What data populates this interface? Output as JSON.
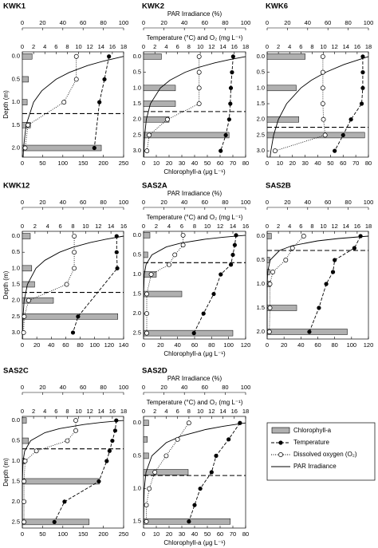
{
  "chart_data": [
    {
      "type": "profile",
      "title": "KWK1",
      "ylabel": "Depth (m)",
      "ylim": [
        -0.1,
        2.2
      ],
      "yticks": [
        {
          "value": 0,
          "label": "0.0"
        },
        0.5,
        {
          "value": 1,
          "label": "1.0"
        },
        1.5,
        {
          "value": 2,
          "label": "2.0"
        }
      ],
      "chl_xlim": [
        0,
        250
      ],
      "chl_xticks": [
        0,
        50,
        100,
        150,
        200,
        250
      ],
      "temp_xlim": [
        0,
        18
      ],
      "temp_xticks": [
        0,
        2,
        4,
        6,
        8,
        10,
        12,
        14,
        16,
        18
      ],
      "par_xlim": [
        0,
        100
      ],
      "par_xticks": [
        0,
        20,
        40,
        60,
        80,
        100
      ],
      "mixing_depth": 1.25,
      "chlorophyll": {
        "depth": [
          0,
          0.5,
          1,
          1.5,
          2
        ],
        "values": [
          24,
          15,
          12,
          20,
          195
        ]
      },
      "temperature": {
        "depth": [
          0,
          0.5,
          1,
          2
        ],
        "values": [
          15.4,
          14.6,
          13.7,
          12.8
        ]
      },
      "oxygen": {
        "depth": [
          0,
          0.5,
          1,
          1.5,
          2
        ],
        "values": [
          9.6,
          9.6,
          7.4,
          1,
          0.5
        ]
      },
      "par": {
        "depth": [
          0,
          0.1,
          0.2,
          0.35,
          0.5,
          0.75,
          1,
          1.5,
          2,
          2.2
        ],
        "values": [
          100,
          80.3,
          64.4,
          46.3,
          33.3,
          19.2,
          11.1,
          3.7,
          1.2,
          0.8
        ]
      }
    },
    {
      "type": "profile",
      "title": "KWK2",
      "par_label": "PAR Irradiance (%)",
      "temp_label": "Temperature (°C) and O₂ (mg L⁻¹)",
      "xlabel": "Chlorophyll-a (μg L⁻¹)",
      "ylim": [
        -0.15,
        3.2
      ],
      "yticks": [
        {
          "value": 0,
          "label": "0.0"
        },
        0.5,
        {
          "value": 1,
          "label": "1.0"
        },
        1.5,
        {
          "value": 2,
          "label": "2.0"
        },
        2.5,
        {
          "value": 3,
          "label": "3.0"
        }
      ],
      "chl_xlim": [
        0,
        80
      ],
      "chl_xticks": [
        0,
        10,
        20,
        30,
        40,
        50,
        60,
        70,
        80
      ],
      "temp_xlim": [
        0,
        18
      ],
      "temp_xticks": [
        0,
        2,
        4,
        6,
        8,
        10,
        12,
        14,
        16,
        18
      ],
      "par_xlim": [
        0,
        100
      ],
      "par_xticks": [
        0,
        20,
        40,
        60,
        80,
        100
      ],
      "mixing_depth": 1.75,
      "chlorophyll": {
        "depth": [
          0,
          1,
          1.5,
          2,
          2.5
        ],
        "values": [
          14,
          25,
          25,
          20,
          67
        ]
      },
      "temperature": {
        "depth": [
          0,
          0.5,
          1,
          1.5,
          2,
          2.5,
          3
        ],
        "values": [
          15.8,
          15.6,
          15.4,
          15.3,
          15.1,
          14.5,
          13.6
        ]
      },
      "oxygen": {
        "depth": [
          0,
          0.5,
          1,
          1.5,
          2,
          2.5,
          3
        ],
        "values": [
          9.8,
          9.8,
          9.8,
          9.8,
          4.2,
          1,
          0.6
        ]
      },
      "par": {
        "depth": [
          0,
          0.1,
          0.2,
          0.35,
          0.5,
          0.75,
          1,
          1.5,
          2,
          2.5,
          3,
          3.2
        ],
        "values": [
          100,
          83.5,
          69.8,
          53.3,
          40.7,
          25.9,
          16.5,
          6.7,
          2.7,
          1.1,
          0.5,
          0.3
        ]
      }
    },
    {
      "type": "profile",
      "title": "KWK6",
      "ylim": [
        -0.15,
        3.2
      ],
      "yticks": [
        {
          "value": 0,
          "label": "0.0"
        },
        0.5,
        {
          "value": 1,
          "label": "1.0"
        },
        1.5,
        {
          "value": 2,
          "label": "2.0"
        },
        2.5,
        {
          "value": 3,
          "label": "3.0"
        }
      ],
      "chl_xlim": [
        0,
        80
      ],
      "chl_xticks": [
        0,
        10,
        20,
        30,
        40,
        50,
        60,
        70,
        80
      ],
      "temp_xlim": [
        0,
        18
      ],
      "temp_xticks": [
        0,
        2,
        4,
        6,
        8,
        10,
        12,
        14,
        16,
        18
      ],
      "par_xlim": [
        0,
        100
      ],
      "par_xticks": [
        0,
        20,
        40,
        60,
        80,
        100
      ],
      "mixing_depth": 2.25,
      "chlorophyll": {
        "depth": [
          0,
          1,
          2,
          2.5
        ],
        "values": [
          30,
          23,
          25,
          77
        ]
      },
      "temperature": {
        "depth": [
          0,
          0.5,
          1,
          1.5,
          2,
          2.5,
          3
        ],
        "values": [
          17,
          17,
          17,
          16.8,
          14.9,
          13.5,
          12
        ]
      },
      "oxygen": {
        "depth": [
          0,
          0.5,
          1,
          1.5,
          2,
          2.5,
          3
        ],
        "values": [
          9.9,
          9.9,
          9.9,
          9.9,
          10,
          10.3,
          1.4
        ]
      },
      "par": {
        "depth": [
          0,
          0.25,
          0.5,
          0.75,
          1,
          1.5,
          2,
          2.5,
          3,
          3.2
        ],
        "values": [
          100,
          76,
          57.7,
          43.8,
          33.3,
          19.2,
          11.1,
          6.4,
          3.7,
          2.9
        ]
      }
    },
    {
      "type": "profile",
      "title": "KWK12",
      "ylabel": "Depth (m)",
      "ylim": [
        -0.15,
        3.2
      ],
      "yticks": [
        {
          "value": 0,
          "label": "0.0"
        },
        0.5,
        {
          "value": 1,
          "label": "1.0"
        },
        1.5,
        {
          "value": 2,
          "label": "2.0"
        },
        2.5,
        {
          "value": 3,
          "label": "3.0"
        }
      ],
      "chl_xlim": [
        0,
        140
      ],
      "chl_xticks": [
        0,
        20,
        40,
        60,
        80,
        100,
        120,
        140
      ],
      "temp_xlim": [
        0,
        16
      ],
      "temp_xticks": [
        0,
        2,
        4,
        6,
        8,
        10,
        12,
        14,
        16
      ],
      "par_xlim": [
        0,
        100
      ],
      "par_xticks": [
        0,
        20,
        40,
        60,
        80,
        100
      ],
      "mixing_depth": 1.75,
      "chlorophyll": {
        "depth": [
          0,
          1,
          1.5,
          2,
          2.5
        ],
        "values": [
          11,
          13,
          17,
          43,
          132
        ]
      },
      "temperature": {
        "depth": [
          0,
          0.5,
          1,
          2.5,
          3
        ],
        "values": [
          14.9,
          14.9,
          15,
          8.8,
          8
        ]
      },
      "oxygen": {
        "depth": [
          0,
          0.5,
          1,
          1.5,
          2,
          2.5,
          3
        ],
        "values": [
          8.2,
          8.2,
          8.2,
          7,
          1,
          0.3,
          0.2
        ]
      },
      "par": {
        "depth": [
          0,
          0.1,
          0.2,
          0.35,
          0.5,
          0.75,
          1,
          1.5,
          2,
          2.5,
          3,
          3.2
        ],
        "values": [
          100,
          81.9,
          67,
          49.7,
          36.8,
          22.3,
          13.5,
          5,
          1.8,
          0.7,
          0.2,
          0.2
        ]
      }
    },
    {
      "type": "profile",
      "title": "SAS2A",
      "par_label": "PAR Irradiance (%)",
      "temp_label": "Temperature (°C) and O₂ (mg L⁻¹)",
      "xlabel": "Chlorophyll-a (μg L⁻¹)",
      "ylim": [
        -0.1,
        2.65
      ],
      "yticks": [
        {
          "value": 0,
          "label": "0.0"
        },
        0.5,
        {
          "value": 1,
          "label": "1.0"
        },
        1.5,
        {
          "value": 2,
          "label": "2.0"
        },
        2.5
      ],
      "chl_xlim": [
        0,
        120
      ],
      "chl_xticks": [
        0,
        20,
        40,
        60,
        80,
        100,
        120
      ],
      "temp_xlim": [
        0,
        16
      ],
      "temp_xticks": [
        0,
        2,
        4,
        6,
        8,
        10,
        12,
        14,
        16
      ],
      "par_xlim": [
        0,
        100
      ],
      "par_xticks": [
        0,
        20,
        40,
        60,
        80,
        100
      ],
      "mixing_depth": 0.7,
      "chlorophyll": {
        "depth": [
          0,
          0.5,
          1,
          1.5,
          2.5
        ],
        "values": [
          7.5,
          5,
          15,
          45,
          105
        ]
      },
      "temperature": {
        "depth": [
          0,
          0.25,
          0.5,
          0.75,
          1,
          1.5,
          2,
          2.5
        ],
        "values": [
          14.5,
          14.3,
          14,
          13.7,
          12.1,
          11,
          9.4,
          7.9
        ]
      },
      "oxygen": {
        "depth": [
          0,
          0.25,
          0.5,
          0.75,
          1,
          1.5,
          2,
          2.5
        ],
        "values": [
          6.2,
          6.2,
          4.9,
          4,
          1.2,
          0.5,
          0.5,
          0.5
        ]
      },
      "par": {
        "depth": [
          0,
          0.05,
          0.1,
          0.2,
          0.3,
          0.5,
          0.75,
          1,
          1.5,
          2,
          2.6
        ],
        "values": [
          100,
          77.9,
          60.7,
          36.8,
          22.3,
          8.2,
          2.4,
          0.7,
          0.1,
          0,
          0
        ]
      }
    },
    {
      "type": "profile",
      "title": "SAS2B",
      "ylim": [
        -0.1,
        2.15
      ],
      "yticks": [
        {
          "value": 0,
          "label": "0.0"
        },
        0.5,
        {
          "value": 1,
          "label": "1.0"
        },
        1.5,
        {
          "value": 2,
          "label": "2.0"
        }
      ],
      "chl_xlim": [
        0,
        120
      ],
      "chl_xticks": [
        0,
        20,
        40,
        60,
        80,
        100,
        120
      ],
      "temp_xlim": [
        0,
        18
      ],
      "temp_xticks": [
        0,
        2,
        4,
        6,
        8,
        10,
        12,
        14,
        16,
        18
      ],
      "par_xlim": [
        0,
        100
      ],
      "par_xticks": [
        0,
        20,
        40,
        60,
        80,
        100
      ],
      "mixing_depth": 0.3,
      "chlorophyll": {
        "depth": [
          0,
          0.5,
          0.75,
          1,
          1.5,
          2
        ],
        "values": [
          5,
          3,
          3,
          4,
          35,
          95
        ]
      },
      "temperature": {
        "depth": [
          0,
          0.25,
          0.5,
          0.75,
          1,
          1.5,
          2
        ],
        "values": [
          16.6,
          15.5,
          12,
          11.7,
          10.5,
          9.2,
          7.5
        ]
      },
      "oxygen": {
        "depth": [
          0,
          0.25,
          0.5,
          0.75,
          1,
          1.5,
          2
        ],
        "values": [
          6.5,
          4.5,
          3.3,
          1,
          0.5,
          0.5,
          0.4
        ]
      },
      "par": {
        "depth": [
          0,
          0.05,
          0.1,
          0.2,
          0.3,
          0.5,
          0.75,
          1,
          1.5,
          2.1
        ],
        "values": [
          100,
          70.5,
          49.7,
          24.7,
          12.2,
          3,
          0.5,
          0.1,
          0,
          0
        ]
      }
    },
    {
      "type": "profile",
      "title": "SAS2C",
      "ylabel": "Depth (m)",
      "ylim": [
        -0.1,
        2.65
      ],
      "yticks": [
        {
          "value": 0,
          "label": "0.0"
        },
        0.5,
        {
          "value": 1,
          "label": "1.0"
        },
        1.5,
        {
          "value": 2,
          "label": "2.0"
        },
        2.5
      ],
      "chl_xlim": [
        0,
        250
      ],
      "chl_xticks": [
        0,
        50,
        100,
        150,
        200,
        250
      ],
      "temp_xlim": [
        0,
        18
      ],
      "temp_xticks": [
        0,
        2,
        4,
        6,
        8,
        10,
        12,
        14,
        16,
        18
      ],
      "par_xlim": [
        0,
        100
      ],
      "par_xticks": [
        0,
        20,
        40,
        60,
        80,
        100
      ],
      "mixing_depth": 0.7,
      "chlorophyll": {
        "depth": [
          0,
          0.5,
          1,
          1.5,
          2.5
        ],
        "values": [
          10,
          15,
          5,
          190,
          165
        ]
      },
      "temperature": {
        "depth": [
          0,
          0.25,
          0.5,
          0.75,
          1,
          1.5,
          2,
          2.5
        ],
        "values": [
          16.7,
          16.5,
          16,
          15.5,
          15,
          13.6,
          7.5,
          5.7
        ]
      },
      "oxygen": {
        "depth": [
          0,
          0.25,
          0.5,
          0.75,
          1,
          1.5,
          2,
          2.5
        ],
        "values": [
          9.5,
          9.5,
          8,
          2.5,
          0.5,
          0.3,
          0.3,
          0.3
        ]
      },
      "par": {
        "depth": [
          0,
          0.05,
          0.1,
          0.2,
          0.3,
          0.5,
          0.75,
          1,
          1.5,
          2,
          2.6
        ],
        "values": [
          100,
          77.9,
          60.7,
          36.8,
          22.3,
          8.2,
          2.4,
          0.7,
          0.1,
          0,
          0
        ]
      }
    },
    {
      "type": "profile",
      "title": "SAS2D",
      "par_label": "PAR Irradiance (%)",
      "temp_label": "Temperature (°C) and O₂ (mg L⁻¹)",
      "xlabel": "Chlorophyll-a (μg L⁻¹)",
      "ylim": [
        -0.1,
        1.6
      ],
      "yticks": [
        {
          "value": 0,
          "label": "0.0"
        },
        0.5,
        {
          "value": 1,
          "label": "1.0"
        },
        1.5
      ],
      "chl_xlim": [
        0,
        80
      ],
      "chl_xticks": [
        0,
        10,
        20,
        30,
        40,
        50,
        60,
        70,
        80
      ],
      "temp_xlim": [
        0,
        18
      ],
      "temp_xticks": [
        0,
        2,
        4,
        6,
        8,
        10,
        12,
        14,
        16,
        18
      ],
      "par_xlim": [
        0,
        100
      ],
      "par_xticks": [
        0,
        20,
        40,
        60,
        80,
        100
      ],
      "mixing_depth": 0.8,
      "chlorophyll": {
        "depth": [
          0,
          0.25,
          0.5,
          0.75,
          1.5
        ],
        "values": [
          4,
          3,
          4,
          35,
          68
        ]
      },
      "temperature": {
        "depth": [
          0,
          0.25,
          0.5,
          0.75,
          1,
          1.25,
          1.5
        ],
        "values": [
          17,
          15,
          12.8,
          12,
          10,
          9,
          8
        ]
      },
      "oxygen": {
        "depth": [
          0,
          0.25,
          0.5,
          0.75,
          1,
          1.25,
          1.5
        ],
        "values": [
          8,
          6,
          4,
          2,
          1,
          0.5,
          0.5
        ]
      },
      "par": {
        "depth": [
          0,
          0.05,
          0.1,
          0.2,
          0.3,
          0.5,
          0.75,
          1,
          1.25,
          1.55
        ],
        "values": [
          100,
          77.9,
          60.7,
          36.8,
          22.3,
          8.2,
          2.4,
          0.7,
          0.2,
          0
        ]
      }
    }
  ],
  "legend": {
    "chlorophyll": "Chlorophyll-a",
    "temperature": "Temperature",
    "oxygen": "Dissolved oxygen (O₂)",
    "par": "PAR Irradiance"
  }
}
